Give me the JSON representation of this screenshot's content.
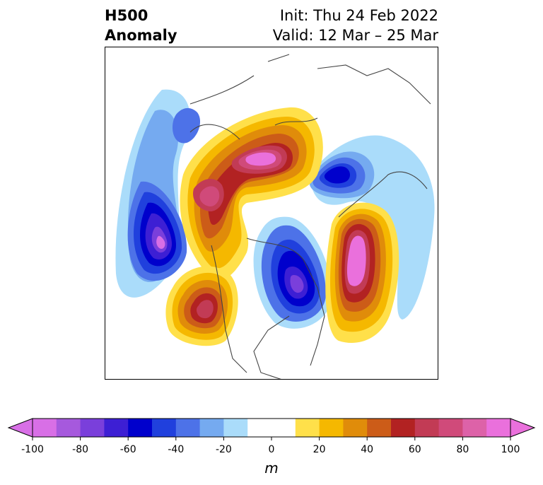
{
  "header": {
    "title_line1": "H500",
    "title_line2": "Anomaly",
    "init_text": "Init: Thu 24 Feb 2022",
    "valid_text": "Valid: 12 Mar – 25 Mar"
  },
  "colorbar": {
    "units": "m",
    "ticks": [
      "-100",
      "-80",
      "-60",
      "-40",
      "-20",
      "0",
      "20",
      "40",
      "60",
      "80",
      "100"
    ],
    "colors": [
      "#d86fe6",
      "#a659dd",
      "#7a3fdb",
      "#3d1fd4",
      "#0000cc",
      "#2040dd",
      "#4d72e8",
      "#75aaf0",
      "#aadcfa",
      "#ffffff",
      "#ffff ff",
      "#ffe04a",
      "#f5b800",
      "#e08c0a",
      "#cc5c18",
      "#b22222",
      "#c23b55",
      "#d04a7a",
      "#dd62a8",
      "#ea70dc"
    ],
    "extend_low_color": "#d86fe6",
    "extend_high_color": "#ea70dc"
  },
  "map": {
    "projection": "polar-stereographic-north",
    "land_color": "#ffffff",
    "coastline_color": "#444444"
  }
}
